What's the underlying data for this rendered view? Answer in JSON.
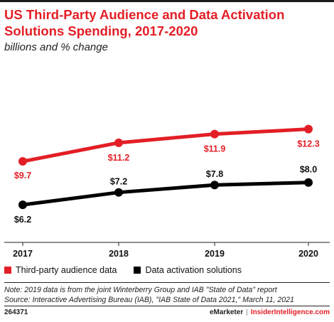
{
  "header": {
    "title": "US Third-Party Audience and Data Activation Solutions Spending, 2017-2020",
    "subtitle": "billions and % change"
  },
  "chart_data": {
    "type": "line",
    "x": [
      "2017",
      "2018",
      "2019",
      "2020"
    ],
    "ylim": [
      0,
      14
    ],
    "grid": false,
    "legend": "bottom",
    "series": [
      {
        "name": "Third-party audience data",
        "color": "#e31e26",
        "values": [
          9.7,
          11.2,
          11.9,
          12.3
        ],
        "labels": [
          "$9.7",
          "$11.2",
          "$11.9",
          "$12.3"
        ]
      },
      {
        "name": "Data activation solutions",
        "color": "#000000",
        "values": [
          6.2,
          7.2,
          7.8,
          8.0
        ],
        "labels": [
          "$6.2",
          "$7.2",
          "$7.8",
          "$8.0"
        ]
      }
    ]
  },
  "notes": {
    "line1": "Note: 2019 data is from the joint Winterberry Group and IAB \"State of Data\" report",
    "line2": "Source: Interactive Advertising Bureau (IAB), \"IAB State of Data 2021,\" March 11, 2021"
  },
  "footer": {
    "id": "264371",
    "brand": "eMarketer",
    "separator": "|",
    "brand2": "InsiderIntelligence.com"
  }
}
